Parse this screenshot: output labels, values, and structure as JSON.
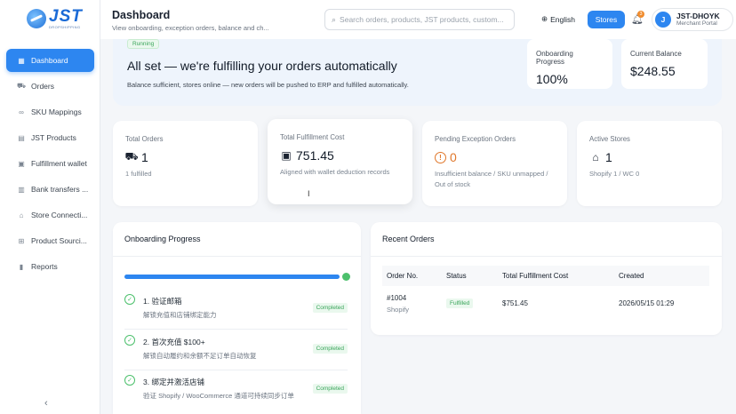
{
  "brand": {
    "name": "JST",
    "tagline": "DROPSHIPPING"
  },
  "sidebar": {
    "items": [
      {
        "label": "Dashboard",
        "icon": "dashboard-icon",
        "glyph": "▦",
        "active": true
      },
      {
        "label": "Orders",
        "icon": "cart-icon",
        "glyph": "⛟",
        "active": false
      },
      {
        "label": "SKU Mappings",
        "icon": "link-icon",
        "glyph": "∞",
        "active": false
      },
      {
        "label": "JST Products",
        "icon": "document-icon",
        "glyph": "▤",
        "active": false
      },
      {
        "label": "Fulfillment wallet",
        "icon": "wallet-icon",
        "glyph": "▣",
        "active": false
      },
      {
        "label": "Bank transfers ...",
        "icon": "bank-icon",
        "glyph": "▥",
        "active": false
      },
      {
        "label": "Store Connecti...",
        "icon": "store-icon",
        "glyph": "⌂",
        "active": false
      },
      {
        "label": "Product Sourci...",
        "icon": "grid-icon",
        "glyph": "⊞",
        "active": false
      },
      {
        "label": "Reports",
        "icon": "bar-chart-icon",
        "glyph": "▮",
        "active": false
      }
    ],
    "collapse_glyph": "‹"
  },
  "header": {
    "title": "Dashboard",
    "subtitle": "View onboarding, exception orders, balance and ch...",
    "search_placeholder": "Search orders, products, JST products, custom...",
    "language": "English",
    "stores_label": "Stores",
    "notification_count": "3",
    "user_initial": "J",
    "user_name": "JST-DHOYK",
    "user_role": "Merchant Portal"
  },
  "banner": {
    "status": "Running",
    "title": "All set — we're fulfilling your orders automatically",
    "description": "Balance sufficient, stores online — new orders will be pushed to ERP and fulfilled automatically.",
    "onboarding_label": "Onboarding Progress",
    "onboarding_value": "100%",
    "balance_label": "Current Balance",
    "balance_value": "$248.55"
  },
  "stats": {
    "total_orders": {
      "label": "Total Orders",
      "value": "1",
      "note": "1 fulfilled"
    },
    "total_cost": {
      "label": "Total Fulfillment Cost",
      "value": "751.45",
      "note": "Aligned with wallet deduction records"
    },
    "pending": {
      "label": "Pending Exception Orders",
      "value": "0",
      "note": "Insufficient balance / SKU unmapped / Out of stock"
    },
    "active_stores": {
      "label": "Active Stores",
      "value": "1",
      "note": "Shopify 1 / WC 0"
    }
  },
  "onboarding": {
    "title": "Onboarding Progress",
    "progress": 1.0,
    "steps": [
      {
        "title": "1. 验证邮箱",
        "desc": "解锁充值和店铺绑定能力",
        "status": "Completed"
      },
      {
        "title": "2. 首次充值 $100+",
        "desc": "解锁自动履约和余额不足订单自动恢复",
        "status": "Completed"
      },
      {
        "title": "3. 绑定并激活店铺",
        "desc": "验证 Shopify / WooCommerce 通道可持续同步订单",
        "status": "Completed"
      }
    ]
  },
  "recent_orders": {
    "title": "Recent Orders",
    "columns": [
      "Order No.",
      "Status",
      "Total Fulfillment Cost",
      "Created"
    ],
    "rows": [
      {
        "order_no": "#1004",
        "store": "Shopify",
        "status": "Fulfilled",
        "cost": "$751.45",
        "created": "2026/05/15 01:29"
      }
    ]
  }
}
